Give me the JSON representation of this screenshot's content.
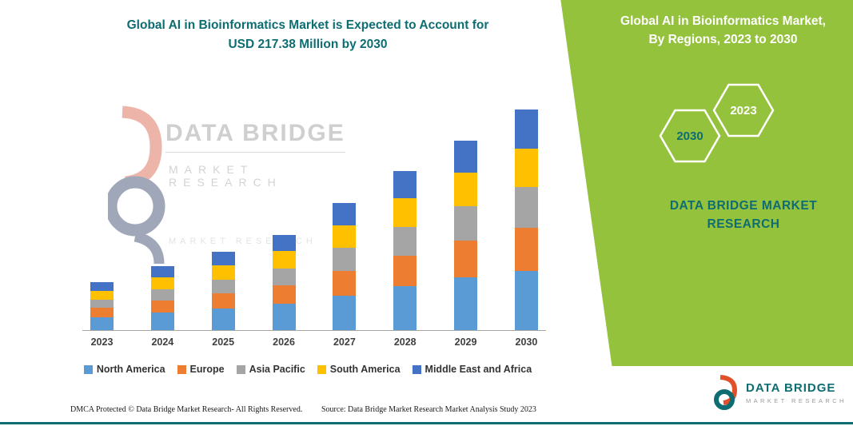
{
  "title": {
    "line1": "Global AI in Bioinformatics Market is Expected to Account for",
    "line2": "USD 217.38 Million by 2030"
  },
  "side_panel": {
    "heading_line1": "Global AI in Bioinformatics Market,",
    "heading_line2": "By Regions, 2023 to 2030",
    "year_back": "2030",
    "year_front": "2023",
    "brand": "DATA BRIDGE MARKET RESEARCH"
  },
  "watermark": {
    "brand": "DATA BRIDGE",
    "sub": "MARKET RESEARCH",
    "sub2": "MARKET RESEARCH"
  },
  "footer": {
    "dmca": "DMCA Protected © Data Bridge Market Research-  All Rights Reserved.",
    "source": "Source: Data Bridge Market Research  Market Analysis Study 2023"
  },
  "logo": {
    "brand": "DATA BRIDGE",
    "sub": "MARKET RESEARCH"
  },
  "colors": {
    "teal": "#0d6d72",
    "panel_green": "#95c23d",
    "axis_gray": "#a6a6a6"
  },
  "chart_data": {
    "type": "bar",
    "stacked": true,
    "title": "Global AI in Bioinformatics Market is Expected to Account for USD 217.38 Million by 2030",
    "categories": [
      "2023",
      "2024",
      "2025",
      "2026",
      "2027",
      "2028",
      "2029",
      "2030"
    ],
    "series": [
      {
        "name": "North America",
        "color": "#5b9bd5",
        "values": [
          13,
          17,
          21,
          26,
          34,
          43,
          52,
          58
        ]
      },
      {
        "name": "Europe",
        "color": "#ed7d31",
        "values": [
          9,
          12,
          15,
          18,
          24,
          30,
          36,
          43
        ]
      },
      {
        "name": "Asia Pacific",
        "color": "#a5a5a5",
        "values": [
          8,
          11,
          14,
          17,
          23,
          29,
          34,
          40
        ]
      },
      {
        "name": "South America",
        "color": "#ffc000",
        "values": [
          9,
          12,
          14,
          17,
          22,
          28,
          33,
          38
        ]
      },
      {
        "name": "Middle East and Africa",
        "color": "#4472c4",
        "values": [
          8,
          11,
          13,
          16,
          22,
          27,
          32,
          38.38
        ]
      }
    ],
    "totals": [
      47,
      63,
      77,
      94,
      125,
      157,
      187,
      217.38
    ],
    "xlabel": "",
    "ylabel": "",
    "ylim": [
      0,
      230
    ],
    "grid": false,
    "legend_position": "bottom"
  }
}
